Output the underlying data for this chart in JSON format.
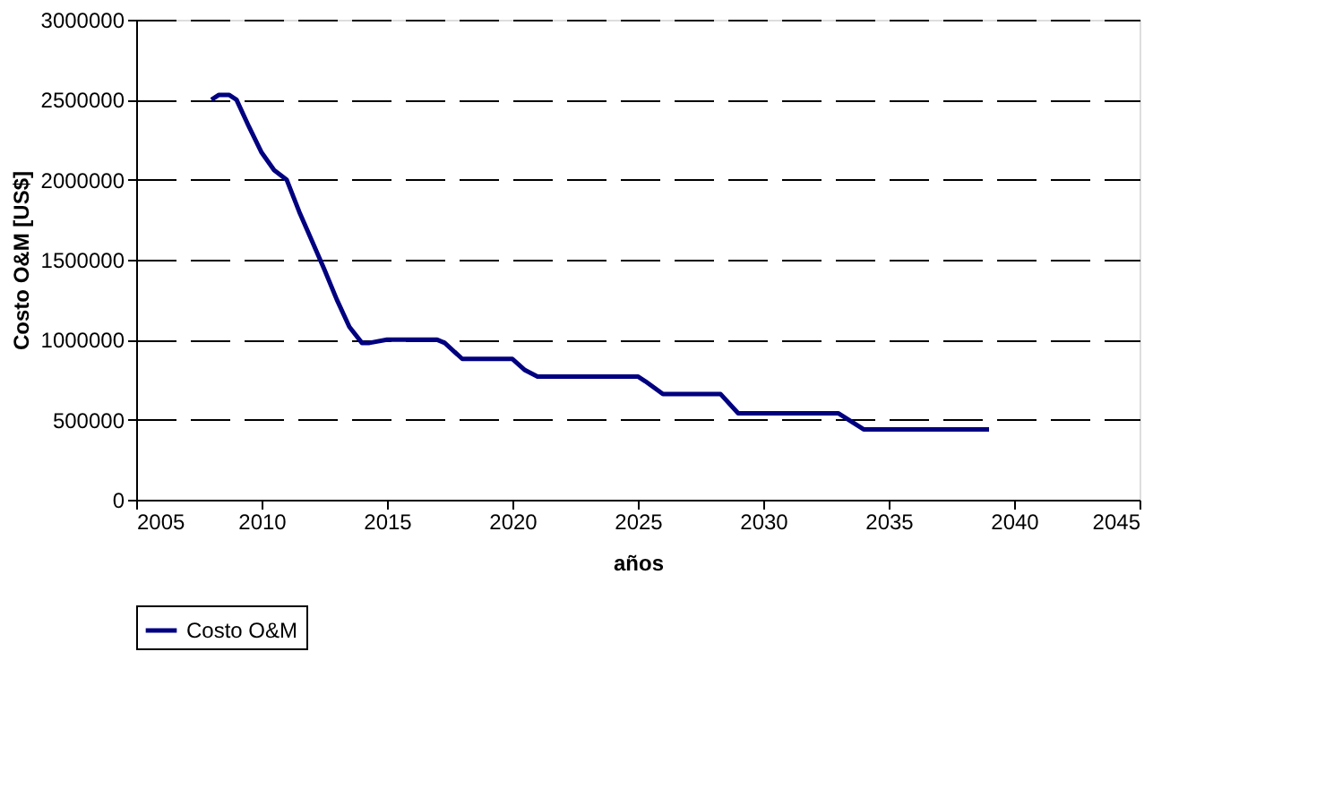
{
  "chart_data": {
    "type": "line",
    "xlabel": "años",
    "ylabel": "Costo O&M [US$]",
    "xlim": [
      2005,
      2045
    ],
    "xticks": [
      2005,
      2010,
      2015,
      2020,
      2025,
      2030,
      2035,
      2040,
      2045
    ],
    "ylim": [
      0,
      3000000
    ],
    "yticks": [
      0,
      500000,
      1000000,
      1500000,
      2000000,
      2500000,
      3000000
    ],
    "grid": "y",
    "legend": "bottom",
    "marker": "none",
    "line_style": "solid",
    "series": [
      {
        "name": "Costo O&M",
        "color": "#000080",
        "x": [
          2008,
          2008.3,
          2008.7,
          2009,
          2009.5,
          2010,
          2010.5,
          2011,
          2011.5,
          2012,
          2012.5,
          2013,
          2013.5,
          2014,
          2014.3,
          2015,
          2017,
          2017.3,
          2018,
          2020,
          2020.5,
          2021,
          2025,
          2025.3,
          2026,
          2028.3,
          2029,
          2033,
          2034,
          2039
        ],
        "values": [
          2500000,
          2530000,
          2530000,
          2500000,
          2330000,
          2170000,
          2060000,
          2000000,
          1800000,
          1620000,
          1440000,
          1250000,
          1080000,
          980000,
          980000,
          1000000,
          1000000,
          980000,
          880000,
          880000,
          810000,
          770000,
          770000,
          740000,
          660000,
          660000,
          540000,
          540000,
          440000,
          440000
        ]
      }
    ]
  }
}
